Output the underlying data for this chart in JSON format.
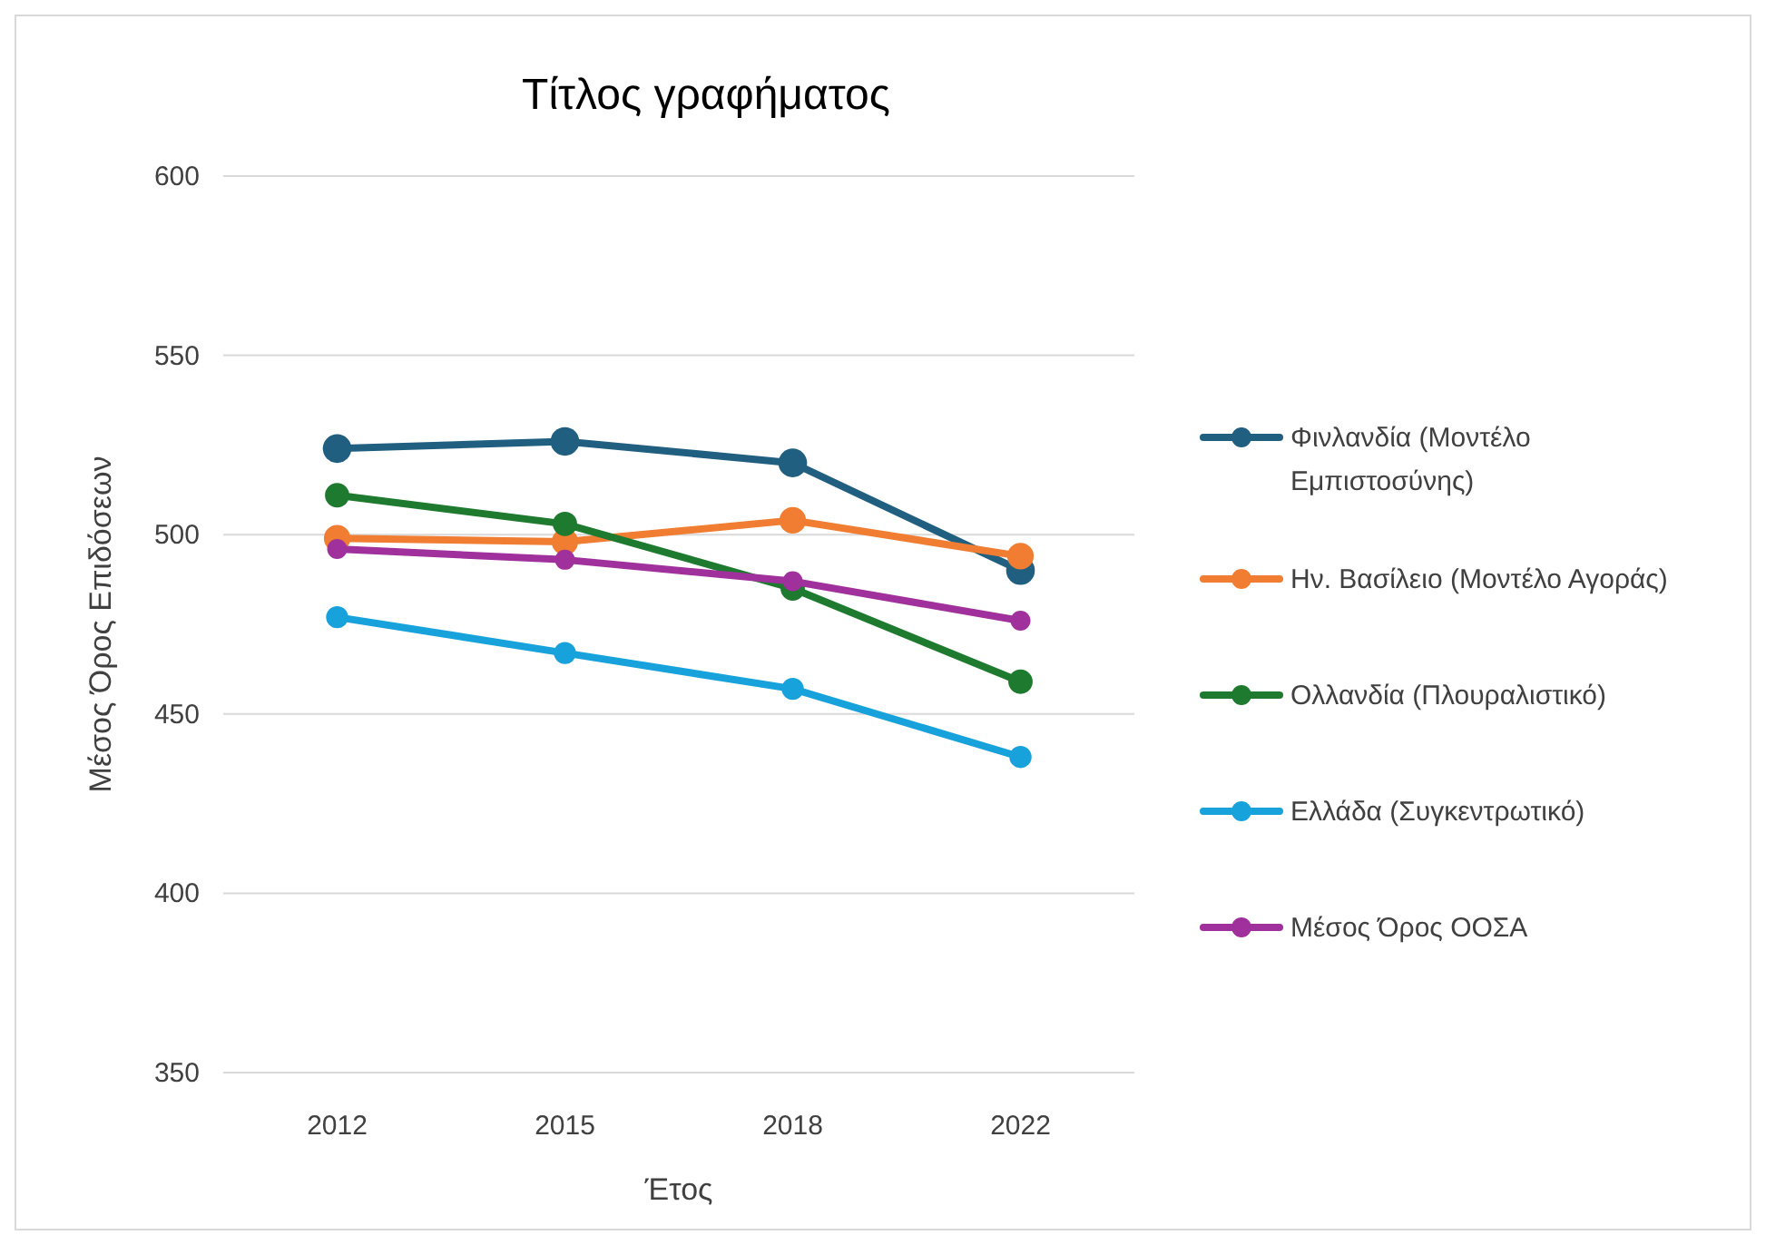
{
  "chart_data": {
    "type": "line",
    "title": "Τίτλος γραφήματος",
    "xlabel": "Έτος",
    "ylabel": "Μέσος Όρος Επιδόσεων",
    "categories": [
      "2012",
      "2015",
      "2018",
      "2022"
    ],
    "series": [
      {
        "name": "Φινλανδία (Μοντέλο Εμπιστοσύνης)",
        "color": "#215f80",
        "values": [
          524,
          526,
          520,
          490
        ]
      },
      {
        "name": "Ην. Βασίλειο (Μοντέλο Αγοράς)",
        "color": "#f07d31",
        "values": [
          499,
          498,
          504,
          494
        ]
      },
      {
        "name": "Ολλανδία (Πλουραλιστικό)",
        "color": "#1e7a2e",
        "values": [
          511,
          503,
          485,
          459
        ]
      },
      {
        "name": "Ελλάδα (Συγκεντρωτικό)",
        "color": "#17a2dc",
        "values": [
          477,
          467,
          457,
          438
        ]
      },
      {
        "name": "Μέσος Όρος ΟΟΣΑ",
        "color": "#a0319c",
        "values": [
          496,
          493,
          487,
          476
        ]
      }
    ],
    "ylim": [
      350,
      600
    ],
    "yticks": [
      350,
      400,
      450,
      500,
      550,
      600
    ],
    "grid": "y",
    "legend": "right",
    "marker": "circle",
    "line_style": "solid"
  }
}
